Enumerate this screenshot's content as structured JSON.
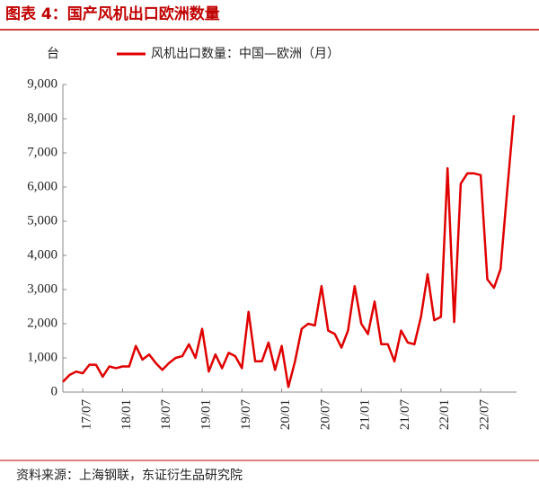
{
  "chart_data": {
    "type": "line",
    "title": "图表 4：国产风机出口欧洲数量",
    "y_label": "台",
    "source": "资料来源：上海钢联，东证衍生品研究院",
    "categories": [
      null,
      null,
      null,
      "17/07",
      null,
      null,
      null,
      null,
      null,
      "18/01",
      null,
      null,
      null,
      null,
      null,
      "18/07",
      null,
      null,
      null,
      null,
      null,
      "19/01",
      null,
      null,
      null,
      null,
      null,
      "19/07",
      null,
      null,
      null,
      null,
      null,
      "20/01",
      null,
      null,
      null,
      null,
      null,
      "20/07",
      null,
      null,
      null,
      null,
      null,
      "21/01",
      null,
      null,
      null,
      null,
      null,
      "21/07",
      null,
      null,
      null,
      null,
      null,
      "22/01",
      null,
      null,
      null,
      null,
      null,
      "22/07",
      null,
      null,
      null,
      null,
      null
    ],
    "series": [
      {
        "name": "风机出口数量：中国—欧洲（月）",
        "color": "#e00000",
        "values": [
          300,
          500,
          600,
          550,
          800,
          800,
          450,
          750,
          700,
          750,
          750,
          1350,
          950,
          1100,
          850,
          650,
          850,
          1000,
          1050,
          1400,
          1000,
          1850,
          600,
          1100,
          700,
          1150,
          1050,
          700,
          2350,
          900,
          900,
          1450,
          650,
          1350,
          150,
          900,
          1850,
          2000,
          1950,
          3100,
          1800,
          1700,
          1300,
          1800,
          3100,
          2000,
          1700,
          2650,
          1400,
          1400,
          900,
          1800,
          1450,
          1400,
          2200,
          3450,
          2100,
          2200,
          6550,
          2050,
          6100,
          6400,
          6400,
          6350,
          3300,
          3050,
          3600,
          5900,
          8100
        ]
      }
    ],
    "ylim": [
      0,
      9000
    ],
    "yticks": [
      0,
      {
        "value": 1000,
        "label": "1,000"
      },
      {
        "value": 2000,
        "label": "2,000"
      },
      {
        "value": 3000,
        "label": "3,000"
      },
      {
        "value": 4000,
        "label": "4,000"
      },
      {
        "value": 5000,
        "label": "5,000"
      },
      {
        "value": 6000,
        "label": "6,000"
      },
      {
        "value": 7000,
        "label": "7,000"
      },
      {
        "value": 8000,
        "label": "8,000"
      },
      {
        "value": 9000,
        "label": "9,000"
      }
    ],
    "grid": false
  }
}
